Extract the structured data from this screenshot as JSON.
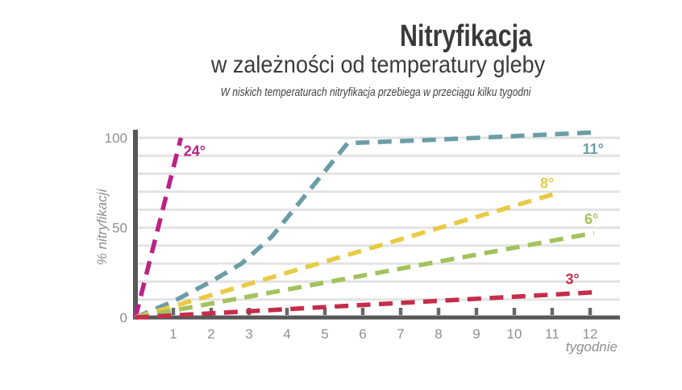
{
  "colors": {
    "grid": "#e3e3e3",
    "axis": "#58585a",
    "tick": "#68686a",
    "muted": "#8f8f91",
    "title_text": "#3a3a3c"
  },
  "chart_data": {
    "type": "line",
    "title": "Nitryfikacja",
    "subtitle": "w zależności od temperatury gleby",
    "note": "W niskich temperaturach nitryfikacja przebiega w przeciągu kilku tygodni",
    "xlabel": "tygodnie",
    "ylabel": "% nitryfikacji",
    "xlim": [
      0,
      12.8
    ],
    "ylim": [
      0,
      105
    ],
    "x_ticks": [
      1,
      2,
      3,
      4,
      5,
      6,
      7,
      8,
      9,
      10,
      11,
      12
    ],
    "y_ticks": [
      0,
      50,
      100
    ],
    "grid": {
      "min": 10,
      "max": 100,
      "step": 10
    },
    "line_style": "dashed",
    "legend_position": "inline-end-of-line",
    "series": [
      {
        "name": "24°",
        "temperature_c": 24,
        "color": "#bb2287",
        "points": [
          [
            0,
            0
          ],
          [
            1.2,
            100
          ]
        ],
        "label_pos": [
          1.27,
          90
        ]
      },
      {
        "name": "11°",
        "temperature_c": 11,
        "color": "#6b9da7",
        "points": [
          [
            0,
            0
          ],
          [
            1,
            9
          ],
          [
            2,
            20
          ],
          [
            2.8,
            30
          ],
          [
            3.6,
            45
          ],
          [
            5.6,
            97
          ],
          [
            8,
            99
          ],
          [
            12.1,
            103
          ]
        ],
        "label_pos": [
          11.8,
          91
        ]
      },
      {
        "name": "8°",
        "temperature_c": 8,
        "color": "#e8ca45",
        "points": [
          [
            0,
            0
          ],
          [
            11.1,
            69
          ]
        ],
        "label_pos": [
          10.68,
          72
        ]
      },
      {
        "name": "6°",
        "temperature_c": 6,
        "color": "#a2c25c",
        "points": [
          [
            0,
            0
          ],
          [
            12.1,
            47
          ]
        ],
        "label_pos": [
          11.85,
          52
        ]
      },
      {
        "name": "3°",
        "temperature_c": 3,
        "color": "#c52d4b",
        "points": [
          [
            0,
            0
          ],
          [
            12.1,
            14
          ]
        ],
        "label_pos": [
          11.35,
          18.5
        ]
      }
    ]
  }
}
